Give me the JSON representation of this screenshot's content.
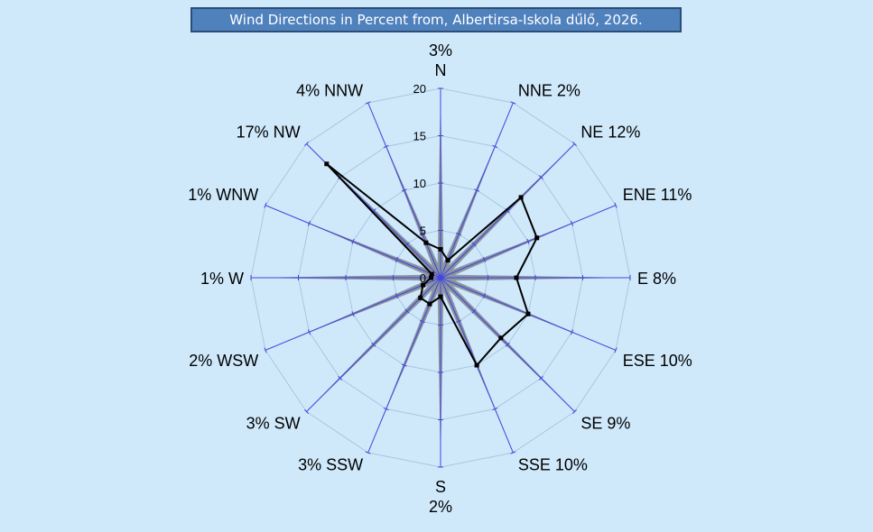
{
  "title": "Wind Directions in Percent from, Albertirsa-Iskola dűlő, 2026.",
  "colors": {
    "background": "#cfe9fb",
    "title_fill": "#4f81bd",
    "ring": "#a9c6de",
    "spoke": "#4444dd",
    "star_light": "#b4bcc8",
    "star_dark": "#7d8791",
    "line": "#000000"
  },
  "chart_data": {
    "type": "radar",
    "directions": [
      "N",
      "NNE",
      "NE",
      "ENE",
      "E",
      "ESE",
      "SE",
      "SSE",
      "S",
      "SSW",
      "SW",
      "WSW",
      "W",
      "WNW",
      "NW",
      "NNW"
    ],
    "percent_labels": [
      "3%",
      "2%",
      "12%",
      "11%",
      "8%",
      "10%",
      "9%",
      "10%",
      "2%",
      "3%",
      "3%",
      "2%",
      "1%",
      "1%",
      "17%",
      "4%"
    ],
    "radial_ticks": [
      0,
      5,
      10,
      15,
      20
    ],
    "rlim": [
      0,
      20
    ],
    "series": [
      {
        "style": "star-light",
        "values": [
          20,
          20,
          20,
          20,
          20,
          20,
          20,
          20,
          20,
          20,
          20,
          20,
          20,
          20,
          20,
          20
        ]
      },
      {
        "style": "star-dark",
        "values": [
          20,
          15,
          20,
          15,
          20,
          15,
          20,
          15,
          20,
          15,
          20,
          15,
          20,
          15,
          20,
          15
        ]
      },
      {
        "style": "line-markers",
        "values": [
          3,
          2,
          12,
          11,
          8,
          10,
          9,
          10,
          2,
          3,
          3,
          2,
          1,
          1,
          17,
          4
        ]
      }
    ]
  }
}
